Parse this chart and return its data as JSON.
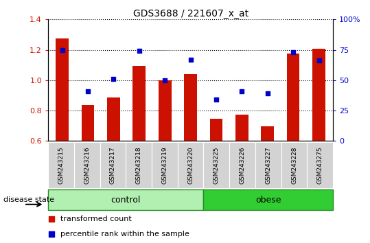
{
  "title": "GDS3688 / 221607_x_at",
  "samples": [
    "GSM243215",
    "GSM243216",
    "GSM243217",
    "GSM243218",
    "GSM243219",
    "GSM243220",
    "GSM243225",
    "GSM243226",
    "GSM243227",
    "GSM243228",
    "GSM243275"
  ],
  "transformed_count": [
    1.275,
    0.835,
    0.885,
    1.095,
    1.0,
    1.04,
    0.748,
    0.775,
    0.695,
    1.175,
    1.205
  ],
  "percentile_rank_pct": [
    75,
    41,
    51,
    74,
    50,
    67,
    34,
    41,
    39,
    73,
    66
  ],
  "bar_color": "#cc1100",
  "dot_color": "#0000cc",
  "ylim_left": [
    0.6,
    1.4
  ],
  "ylim_right": [
    0,
    100
  ],
  "yticks_left": [
    0.6,
    0.8,
    1.0,
    1.2,
    1.4
  ],
  "yticks_right": [
    0,
    25,
    50,
    75,
    100
  ],
  "ytick_labels_right": [
    "0",
    "25",
    "50",
    "75",
    "100%"
  ],
  "groups": {
    "control": [
      0,
      1,
      2,
      3,
      4,
      5
    ],
    "obese": [
      6,
      7,
      8,
      9,
      10
    ]
  },
  "group_color_control": "#b2f0b2",
  "group_color_obese": "#32cd32",
  "group_border_color": "#228B22",
  "bar_width": 0.5,
  "legend_items": [
    {
      "label": "transformed count",
      "color": "#cc1100"
    },
    {
      "label": "percentile rank within the sample",
      "color": "#0000cc"
    }
  ]
}
